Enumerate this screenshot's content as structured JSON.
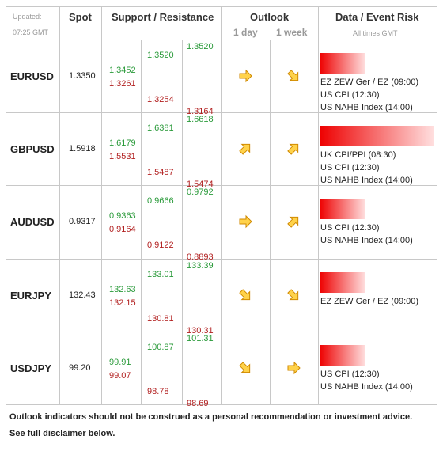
{
  "header": {
    "updated_label": "Updated:",
    "updated_time": "07:25 GMT",
    "spot": "Spot",
    "support_resistance": "Support / Resistance",
    "outlook": "Outlook",
    "outlook_1day": "1 day",
    "outlook_1week": "1 week",
    "event_risk": "Data / Event Risk",
    "event_note": "All times GMT"
  },
  "rows": [
    {
      "pair": "EURUSD",
      "spot": "1.3350",
      "levels": [
        [
          "1.3452",
          "1.3261"
        ],
        [
          "1.3520",
          "1.3254"
        ],
        [
          "1.3520",
          "1.3164"
        ]
      ],
      "events": [
        "EZ ZEW Ger / EZ (09:00)",
        "US CPI (12:30)",
        "US NAHB Index (14:00)"
      ]
    },
    {
      "pair": "GBPUSD",
      "spot": "1.5918",
      "levels": [
        [
          "1.6179",
          "1.5531"
        ],
        [
          "1.6381",
          "1.5487"
        ],
        [
          "1.6618",
          "1.5474"
        ]
      ],
      "events": [
        "UK CPI/PPI (08:30)",
        "US CPI (12:30)",
        "US NAHB Index (14:00)"
      ]
    },
    {
      "pair": "AUDUSD",
      "spot": "0.9317",
      "levels": [
        [
          "0.9363",
          "0.9164"
        ],
        [
          "0.9666",
          "0.9122"
        ],
        [
          "0.9792",
          "0.8893"
        ]
      ],
      "events": [
        "US CPI (12:30)",
        "US NAHB Index (14:00)"
      ]
    },
    {
      "pair": "EURJPY",
      "spot": "132.43",
      "levels": [
        [
          "132.63",
          "132.15"
        ],
        [
          "133.01",
          "130.81"
        ],
        [
          "133.39",
          "130.31"
        ]
      ],
      "events": [
        "EZ ZEW Ger / EZ (09:00)"
      ]
    },
    {
      "pair": "USDJPY",
      "spot": "99.20",
      "levels": [
        [
          "99.91",
          "99.07"
        ],
        [
          "100.87",
          "98.78"
        ],
        [
          "101.31",
          "98.69"
        ]
      ],
      "events": [
        "US CPI (12:30)",
        "US NAHB Index (14:00)"
      ]
    }
  ],
  "footer": [
    "Outlook indicators should not be construed as a personal recommendation or investment advice.",
    "See full disclaimer below."
  ]
}
